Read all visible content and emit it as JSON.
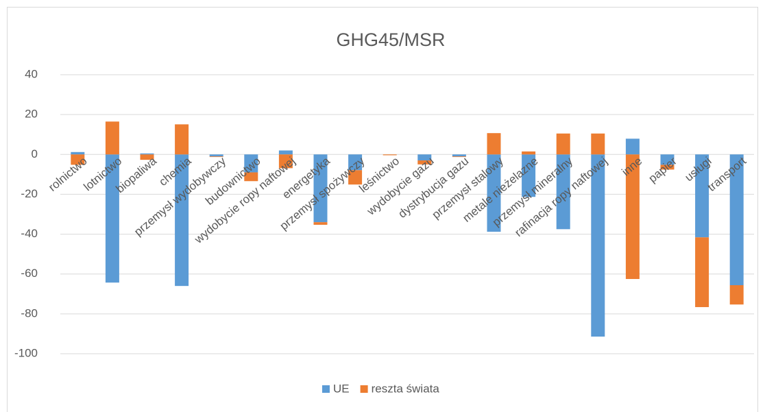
{
  "chart_data": {
    "type": "stacked_bar",
    "title": "GHG45/MSR",
    "categories": [
      "rolnictwo",
      "lotnictwo",
      "biopaliwa",
      "chemia",
      "przemysł wydobywczy",
      "budownictwo",
      "wydobycie ropy naftowej",
      "energetyka",
      "przemysł spożywczy",
      "leśnictwo",
      "wydobycie gazu",
      "dystrybucja gazu",
      "przemysł stalowy",
      "metale nieżelazne",
      "przemysł mineralny",
      "rafinacja ropy naftowej",
      "inne",
      "papier",
      "usługi",
      "transport"
    ],
    "series": [
      {
        "name": "UE",
        "color": "#5b9bd5",
        "values": [
          1.2,
          -64.3,
          0.5,
          -66,
          -1,
          -9,
          2,
          -34,
          -7.9,
          0,
          -3,
          -1,
          -38.8,
          -21.3,
          -37.5,
          -91.4,
          7.9,
          -5.2,
          -41.6,
          -65.6
        ]
      },
      {
        "name": "reszta świata",
        "color": "#ed7d31",
        "values": [
          -5.2,
          16.5,
          -2.7,
          15.1,
          -0.3,
          -4.4,
          -6.9,
          -1.3,
          -7.2,
          -0.4,
          -2,
          -0.3,
          10.7,
          1.5,
          10.5,
          10.5,
          -62.5,
          -2.4,
          -35,
          -9.7
        ]
      }
    ],
    "ylim": [
      -100,
      40
    ],
    "yticks": [
      -100,
      -80,
      -60,
      -40,
      -20,
      0,
      20,
      40
    ],
    "grid": true,
    "legend": "bottom"
  }
}
